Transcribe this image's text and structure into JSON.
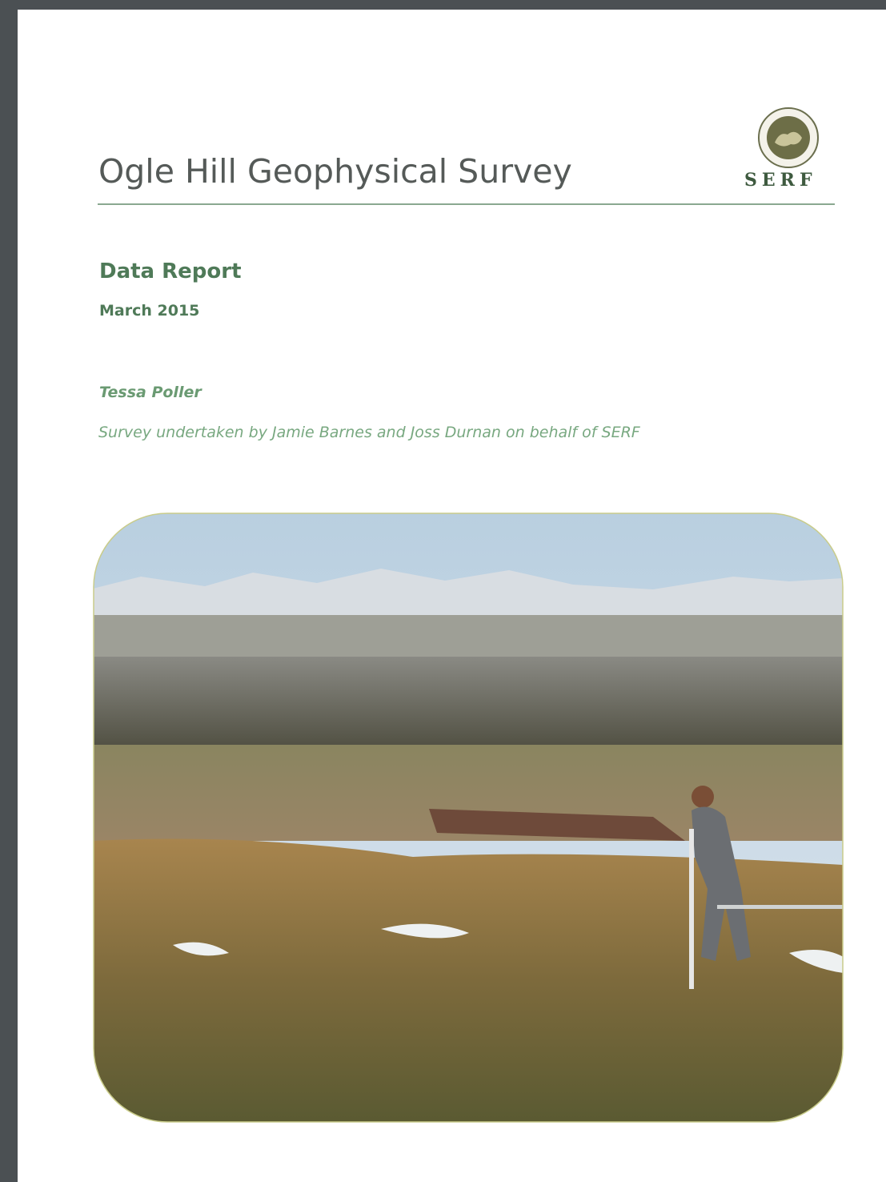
{
  "header": {
    "title": "Ogle Hill Geophysical Survey",
    "logo_text": "SERF"
  },
  "report": {
    "subtitle": "Data Report",
    "date": "March 2015"
  },
  "authors": {
    "author": "Tessa Poller",
    "credit": "Survey undertaken by Jamie Barnes and Joss Durnan on behalf of SERF"
  }
}
